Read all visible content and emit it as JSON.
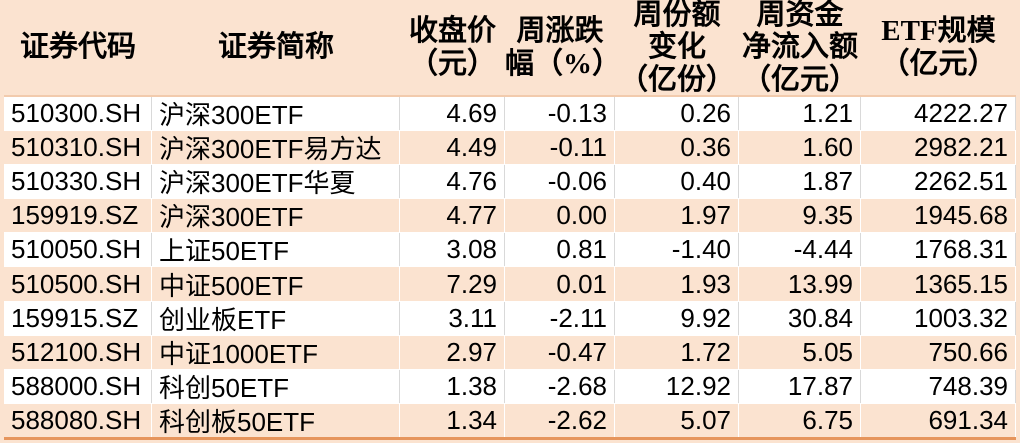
{
  "colors": {
    "background_peach": "#fbe3d0",
    "row_white": "#ffffff",
    "grid_gray": "#d9d9d9",
    "grid_white": "#ffffff",
    "bottom_accent": "#e6955c",
    "header_divider": "#f2cbad",
    "text": "#000000"
  },
  "chart_data": {
    "type": "table",
    "title": "",
    "columns": [
      {
        "key": "code",
        "label": "证券代码",
        "align": "left"
      },
      {
        "key": "name",
        "label": "证券简称",
        "align": "left"
      },
      {
        "key": "close",
        "label": "收盘价\n（元）",
        "align": "right"
      },
      {
        "key": "pct_change",
        "label": "周涨跌\n幅（%）",
        "align": "right"
      },
      {
        "key": "share_change",
        "label": "周份额\n变化\n（亿份）",
        "align": "right"
      },
      {
        "key": "net_inflow",
        "label": "周资金\n净流入额\n（亿元）",
        "align": "right"
      },
      {
        "key": "scale",
        "label": "ETF规模\n（亿元）",
        "align": "right"
      }
    ],
    "rows": [
      {
        "code": "510300.SH",
        "name": "沪深300ETF",
        "close": "4.69",
        "pct_change": "-0.13",
        "share_change": "0.26",
        "net_inflow": "1.21",
        "scale": "4222.27"
      },
      {
        "code": "510310.SH",
        "name": "沪深300ETF易方达",
        "close": "4.49",
        "pct_change": "-0.11",
        "share_change": "0.36",
        "net_inflow": "1.60",
        "scale": "2982.21"
      },
      {
        "code": "510330.SH",
        "name": "沪深300ETF华夏",
        "close": "4.76",
        "pct_change": "-0.06",
        "share_change": "0.40",
        "net_inflow": "1.87",
        "scale": "2262.51"
      },
      {
        "code": "159919.SZ",
        "name": "沪深300ETF",
        "close": "4.77",
        "pct_change": "0.00",
        "share_change": "1.97",
        "net_inflow": "9.35",
        "scale": "1945.68"
      },
      {
        "code": "510050.SH",
        "name": "上证50ETF",
        "close": "3.08",
        "pct_change": "0.81",
        "share_change": "-1.40",
        "net_inflow": "-4.44",
        "scale": "1768.31"
      },
      {
        "code": "510500.SH",
        "name": "中证500ETF",
        "close": "7.29",
        "pct_change": "0.01",
        "share_change": "1.93",
        "net_inflow": "13.99",
        "scale": "1365.15"
      },
      {
        "code": "159915.SZ",
        "name": "创业板ETF",
        "close": "3.11",
        "pct_change": "-2.11",
        "share_change": "9.92",
        "net_inflow": "30.84",
        "scale": "1003.32"
      },
      {
        "code": "512100.SH",
        "name": "中证1000ETF",
        "close": "2.97",
        "pct_change": "-0.47",
        "share_change": "1.72",
        "net_inflow": "5.05",
        "scale": "750.66"
      },
      {
        "code": "588000.SH",
        "name": "科创50ETF",
        "close": "1.38",
        "pct_change": "-2.68",
        "share_change": "12.92",
        "net_inflow": "17.87",
        "scale": "748.39"
      },
      {
        "code": "588080.SH",
        "name": "科创板50ETF",
        "close": "1.34",
        "pct_change": "-2.62",
        "share_change": "5.07",
        "net_inflow": "6.75",
        "scale": "691.34"
      }
    ]
  }
}
